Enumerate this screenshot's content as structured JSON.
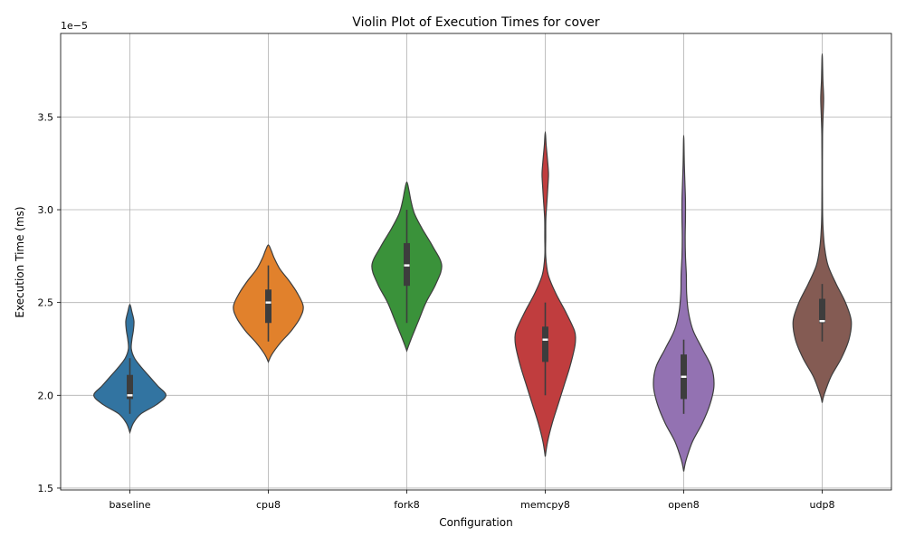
{
  "chart_data": {
    "type": "violin",
    "title": "Violin Plot of Execution Times for cover",
    "xlabel": "Configuration",
    "ylabel": "Execution Time (ms)",
    "y_offset_label": "1e−5",
    "ylim": [
      1.49,
      3.95
    ],
    "y_ticks": [
      1.5,
      2.0,
      2.5,
      3.0,
      3.5
    ],
    "y_tick_labels": [
      "1.5",
      "2.0",
      "2.5",
      "3.0",
      "3.5"
    ],
    "grid": true,
    "categories": [
      "baseline",
      "cpu8",
      "fork8",
      "memcpy8",
      "open8",
      "udp8"
    ],
    "colors": [
      "#3274a1",
      "#e1812c",
      "#3a923a",
      "#c03d3e",
      "#9372b2",
      "#845b53"
    ],
    "series": [
      {
        "category": "baseline",
        "q1": 1.98,
        "median": 2.0,
        "q3": 2.11,
        "whisker_low": 1.9,
        "whisker_high": 2.2,
        "profile": [
          [
            1.8,
            0
          ],
          [
            1.85,
            0.06
          ],
          [
            1.9,
            0.19
          ],
          [
            1.95,
            0.46
          ],
          [
            2.0,
            0.62
          ],
          [
            2.05,
            0.48
          ],
          [
            2.1,
            0.34
          ],
          [
            2.15,
            0.2
          ],
          [
            2.2,
            0.08
          ],
          [
            2.25,
            0.025
          ],
          [
            2.3,
            0.035
          ],
          [
            2.35,
            0.06
          ],
          [
            2.4,
            0.07
          ],
          [
            2.45,
            0.035
          ],
          [
            2.49,
            0
          ]
        ]
      },
      {
        "category": "cpu8",
        "q1": 2.39,
        "median": 2.5,
        "q3": 2.57,
        "whisker_low": 2.29,
        "whisker_high": 2.7,
        "profile": [
          [
            2.18,
            0
          ],
          [
            2.22,
            0.06
          ],
          [
            2.28,
            0.2
          ],
          [
            2.35,
            0.4
          ],
          [
            2.42,
            0.55
          ],
          [
            2.48,
            0.6
          ],
          [
            2.55,
            0.5
          ],
          [
            2.62,
            0.35
          ],
          [
            2.68,
            0.2
          ],
          [
            2.74,
            0.1
          ],
          [
            2.78,
            0.05
          ],
          [
            2.81,
            0
          ]
        ]
      },
      {
        "category": "fork8",
        "q1": 2.59,
        "median": 2.7,
        "q3": 2.82,
        "whisker_low": 2.39,
        "whisker_high": 3.0,
        "profile": [
          [
            2.24,
            0
          ],
          [
            2.3,
            0.07
          ],
          [
            2.4,
            0.2
          ],
          [
            2.5,
            0.33
          ],
          [
            2.6,
            0.5
          ],
          [
            2.7,
            0.6
          ],
          [
            2.8,
            0.45
          ],
          [
            2.9,
            0.26
          ],
          [
            2.98,
            0.13
          ],
          [
            3.05,
            0.07
          ],
          [
            3.1,
            0.04
          ],
          [
            3.15,
            0
          ]
        ]
      },
      {
        "category": "memcpy8",
        "q1": 2.18,
        "median": 2.3,
        "q3": 2.37,
        "whisker_low": 2.0,
        "whisker_high": 2.5,
        "profile": [
          [
            1.67,
            0
          ],
          [
            1.75,
            0.04
          ],
          [
            1.85,
            0.12
          ],
          [
            1.95,
            0.22
          ],
          [
            2.05,
            0.32
          ],
          [
            2.15,
            0.42
          ],
          [
            2.25,
            0.5
          ],
          [
            2.3,
            0.52
          ],
          [
            2.35,
            0.5
          ],
          [
            2.45,
            0.35
          ],
          [
            2.55,
            0.18
          ],
          [
            2.65,
            0.05
          ],
          [
            2.75,
            0.008
          ],
          [
            2.85,
            0.008
          ],
          [
            2.95,
            0.01
          ],
          [
            3.05,
            0.03
          ],
          [
            3.15,
            0.05
          ],
          [
            3.2,
            0.055
          ],
          [
            3.28,
            0.035
          ],
          [
            3.35,
            0.015
          ],
          [
            3.42,
            0
          ]
        ]
      },
      {
        "category": "open8",
        "q1": 1.98,
        "median": 2.1,
        "q3": 2.22,
        "whisker_low": 1.9,
        "whisker_high": 2.3,
        "profile": [
          [
            1.59,
            0
          ],
          [
            1.65,
            0.04
          ],
          [
            1.75,
            0.15
          ],
          [
            1.85,
            0.32
          ],
          [
            1.95,
            0.45
          ],
          [
            2.05,
            0.52
          ],
          [
            2.15,
            0.48
          ],
          [
            2.25,
            0.32
          ],
          [
            2.35,
            0.16
          ],
          [
            2.45,
            0.08
          ],
          [
            2.55,
            0.05
          ],
          [
            2.65,
            0.045
          ],
          [
            2.75,
            0.03
          ],
          [
            2.85,
            0.025
          ],
          [
            2.95,
            0.03
          ],
          [
            3.05,
            0.03
          ],
          [
            3.15,
            0.02
          ],
          [
            3.25,
            0.01
          ],
          [
            3.4,
            0
          ]
        ]
      },
      {
        "category": "udp8",
        "q1": 2.39,
        "median": 2.4,
        "q3": 2.52,
        "whisker_low": 2.29,
        "whisker_high": 2.6,
        "profile": [
          [
            1.96,
            0
          ],
          [
            2.0,
            0.03
          ],
          [
            2.1,
            0.15
          ],
          [
            2.2,
            0.33
          ],
          [
            2.3,
            0.46
          ],
          [
            2.4,
            0.5
          ],
          [
            2.5,
            0.4
          ],
          [
            2.6,
            0.24
          ],
          [
            2.7,
            0.1
          ],
          [
            2.8,
            0.04
          ],
          [
            2.9,
            0.015
          ],
          [
            3.0,
            0.006
          ],
          [
            3.2,
            0.004
          ],
          [
            3.4,
            0.006
          ],
          [
            3.5,
            0.015
          ],
          [
            3.6,
            0.025
          ],
          [
            3.7,
            0.012
          ],
          [
            3.84,
            0
          ]
        ]
      }
    ]
  }
}
